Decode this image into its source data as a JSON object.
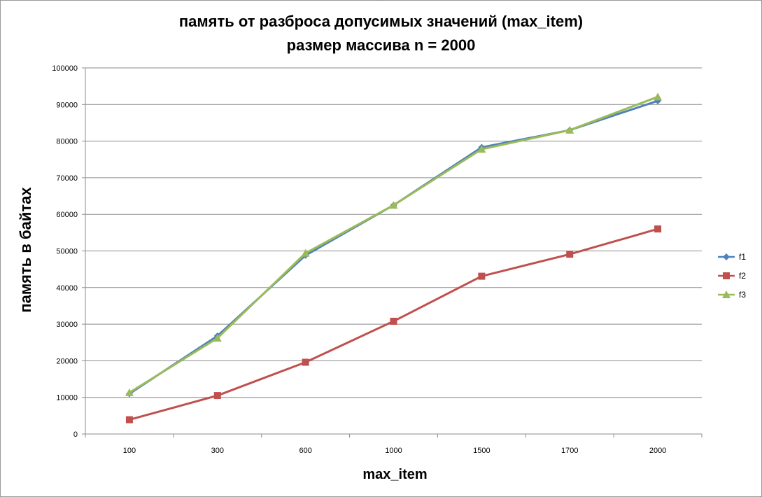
{
  "chart_data": {
    "type": "line",
    "title": "память от разброса допусимых значений (max_item)",
    "subtitle": "размер массива n = 2000",
    "xlabel": "max_item",
    "ylabel": "память в байтах",
    "categories": [
      "100",
      "300",
      "600",
      "1000",
      "1500",
      "1700",
      "2000"
    ],
    "ylim": [
      0,
      100000
    ],
    "yticks": [
      "0",
      "10000",
      "20000",
      "30000",
      "40000",
      "50000",
      "60000",
      "70000",
      "80000",
      "90000",
      "100000"
    ],
    "grid": true,
    "legend_position": "right",
    "series": [
      {
        "name": "f1",
        "color": "#4F81BD",
        "marker": "diamond",
        "values": [
          11000,
          26800,
          48800,
          62500,
          78300,
          83000,
          91000
        ]
      },
      {
        "name": "f2",
        "color": "#C0504D",
        "marker": "square",
        "values": [
          3900,
          10500,
          19600,
          30800,
          43100,
          49100,
          56000
        ]
      },
      {
        "name": "f3",
        "color": "#9BBB59",
        "marker": "triangle",
        "values": [
          11300,
          26200,
          49400,
          62500,
          77800,
          83000,
          92100
        ]
      }
    ]
  }
}
